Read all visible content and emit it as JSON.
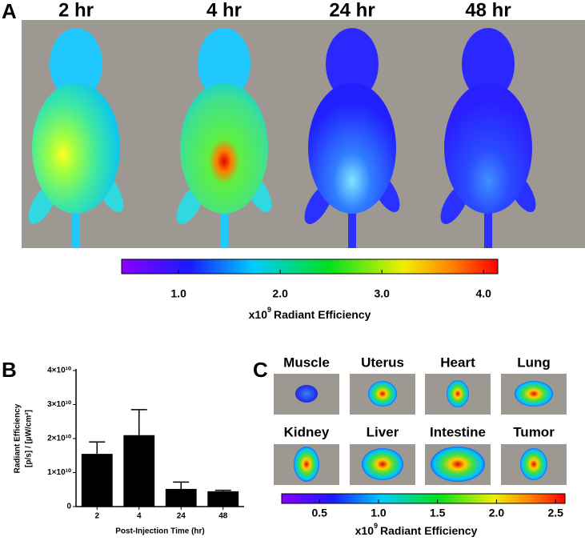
{
  "panel_a": {
    "label": "A",
    "timepoints": [
      "2 hr",
      "4 hr",
      "24 hr",
      "48 hr"
    ],
    "colorbar": {
      "lim": [
        0.44,
        4.14
      ],
      "ticks": [
        {
          "value": 1,
          "label": "1.0"
        },
        {
          "value": 2,
          "label": "2.0"
        },
        {
          "value": 3,
          "label": "3.0"
        },
        {
          "value": 4,
          "label": "4.0"
        }
      ],
      "label_base": "x10",
      "label_exponent": "9",
      "label_text": "Radiant Efficiency"
    }
  },
  "chart_data": {
    "type": "bar",
    "panel_label": "B",
    "categories": [
      "2",
      "4",
      "24",
      "48"
    ],
    "values": [
      15500000000,
      21000000000,
      5200000000,
      4500000000
    ],
    "errors": [
      3500000000,
      7500000000,
      2000000000,
      300000000
    ],
    "color": "#000000",
    "ylim": [
      0,
      40000000000
    ],
    "yticks": [
      0,
      {
        "value": 10000000000,
        "label": "1×10¹⁰"
      },
      {
        "value": 20000000000,
        "label": "2×10¹⁰"
      },
      {
        "value": 30000000000,
        "label": "3×10¹⁰"
      },
      {
        "value": 40000000000,
        "label": "4×10¹⁰"
      }
    ],
    "ylabel": [
      "Radiant Efficiency",
      "[p/s] / [µW/cm²]"
    ],
    "xlabel": "Post-Injection Time (hr)"
  },
  "panel_c": {
    "label": "C",
    "organs": [
      "Muscle",
      "Uterus",
      "Heart",
      "Lung",
      "Kidney",
      "Liver",
      "Intestine",
      "Tumor"
    ],
    "colorbar": {
      "lim": [
        0.18,
        2.58
      ],
      "ticks": [
        {
          "value": 0.5,
          "label": "0.5"
        },
        {
          "value": 1,
          "label": "1.0"
        },
        {
          "value": 1.5,
          "label": "1.5"
        },
        {
          "value": 2,
          "label": "2.0"
        },
        {
          "value": 2.5,
          "label": "2.5"
        }
      ],
      "label_base": "x10",
      "label_exponent": "9",
      "label_text": "Radiant Efficiency"
    }
  }
}
